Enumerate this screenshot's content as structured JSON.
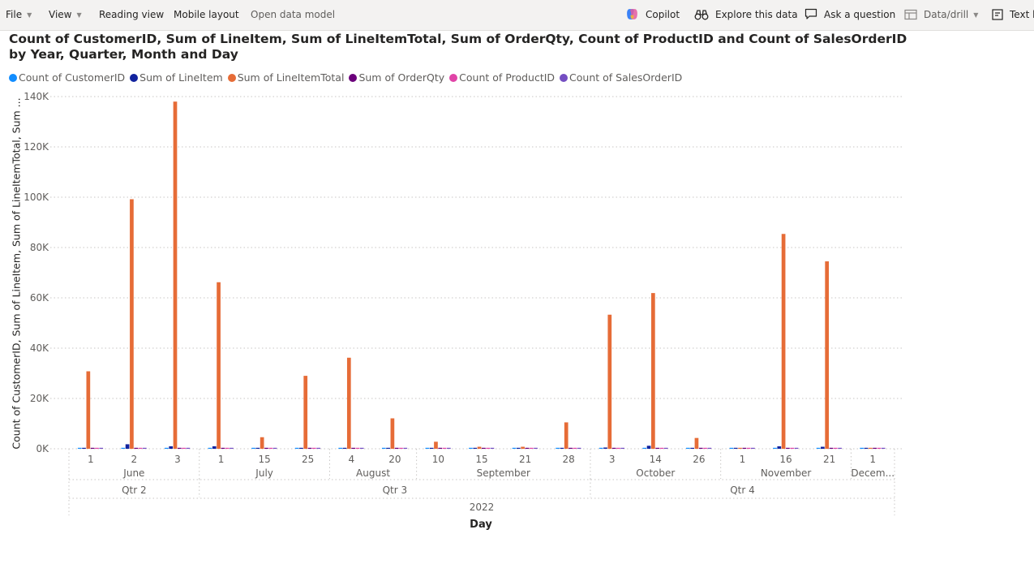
{
  "toolbar": {
    "file": "File",
    "view": "View",
    "reading_view": "Reading view",
    "mobile_layout": "Mobile layout",
    "open_data_model": "Open data model",
    "copilot": "Copilot",
    "explore": "Explore this data",
    "ask": "Ask a question",
    "data_drill": "Data/drill",
    "text_box": "Text b"
  },
  "chart_data": {
    "type": "bar",
    "title": "Count of CustomerID, Sum of LineItem, Sum of LineItemTotal, Sum of OrderQty, Count of ProductID and Count of SalesOrderID by Year, Quarter, Month and Day",
    "ylabel": "Count of CustomerID, Sum of LineItem, Sum of LineItemTotal, Sum ...",
    "xlabel": "Day",
    "ylim": [
      0,
      140000
    ],
    "yticks": [
      "0K",
      "20K",
      "40K",
      "60K",
      "80K",
      "100K",
      "120K",
      "140K"
    ],
    "grid": true,
    "legend_position": "top-left",
    "categories": [
      "1",
      "2",
      "3",
      "1",
      "15",
      "25",
      "4",
      "20",
      "10",
      "15",
      "21",
      "28",
      "3",
      "14",
      "26",
      "1",
      "16",
      "21",
      "1"
    ],
    "months": [
      {
        "label": "June",
        "span": 3
      },
      {
        "label": "July",
        "span": 3
      },
      {
        "label": "August",
        "span": 2
      },
      {
        "label": "September",
        "span": 4
      },
      {
        "label": "October",
        "span": 3
      },
      {
        "label": "November",
        "span": 3
      },
      {
        "label": "Decem...",
        "span": 1
      }
    ],
    "quarters": [
      {
        "label": "Qtr 2",
        "span": 3
      },
      {
        "label": "Qtr 3",
        "span": 9
      },
      {
        "label": "Qtr 4",
        "span": 7
      }
    ],
    "years": [
      {
        "label": "2022",
        "span": 19
      }
    ],
    "series": [
      {
        "name": "Count of CustomerID",
        "color": "#118dff",
        "values": [
          15,
          60,
          40,
          40,
          10,
          20,
          20,
          15,
          10,
          10,
          10,
          15,
          30,
          40,
          10,
          10,
          40,
          30,
          10
        ]
      },
      {
        "name": "Sum of LineItem",
        "color": "#12239e",
        "values": [
          300,
          1800,
          1000,
          1000,
          100,
          250,
          300,
          200,
          50,
          60,
          100,
          200,
          500,
          1200,
          80,
          50,
          1000,
          800,
          20
        ]
      },
      {
        "name": "Sum of LineItemTotal",
        "color": "#e66c37",
        "values": [
          30800,
          99200,
          138000,
          66200,
          4600,
          29000,
          36200,
          12100,
          2800,
          800,
          800,
          10500,
          53300,
          61900,
          4300,
          200,
          85400,
          74500,
          200
        ]
      },
      {
        "name": "Sum of OrderQty",
        "color": "#6b007b",
        "values": [
          100,
          250,
          200,
          200,
          30,
          80,
          100,
          60,
          15,
          20,
          30,
          60,
          150,
          250,
          25,
          15,
          250,
          200,
          10
        ]
      },
      {
        "name": "Count of ProductID",
        "color": "#e044a7",
        "values": [
          15,
          60,
          40,
          40,
          10,
          20,
          20,
          15,
          10,
          10,
          10,
          15,
          30,
          40,
          10,
          10,
          40,
          30,
          10
        ]
      },
      {
        "name": "Count of SalesOrderID",
        "color": "#744ec2",
        "values": [
          15,
          60,
          40,
          40,
          10,
          20,
          20,
          15,
          10,
          10,
          10,
          15,
          30,
          40,
          10,
          10,
          40,
          30,
          10
        ]
      }
    ]
  }
}
